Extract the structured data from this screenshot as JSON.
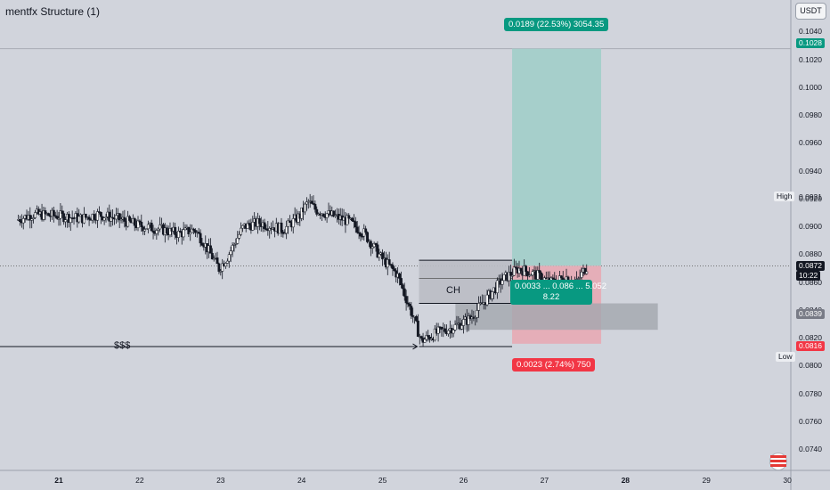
{
  "header": {
    "title": "mentfx Structure (1)"
  },
  "currency_button": "USDT",
  "chart_data": {
    "type": "candlestick",
    "title": "mentfx Structure (1)",
    "quote_currency": "USDT",
    "y_ticks": [
      0.074,
      0.076,
      0.078,
      0.08,
      0.082,
      0.084,
      0.086,
      0.088,
      0.09,
      0.092,
      0.094,
      0.096,
      0.098,
      0.1,
      0.102,
      0.104
    ],
    "ylim": [
      0.0725,
      0.1054
    ],
    "x_ticks": [
      "21",
      "22",
      "23",
      "24",
      "25",
      "26",
      "27",
      "28",
      "29",
      "30"
    ],
    "x_tick_bold": [
      "21",
      "28"
    ],
    "price_path": [
      [
        20.5,
        0.0905
      ],
      [
        20.7,
        0.0909
      ],
      [
        21.0,
        0.0908
      ],
      [
        21.3,
        0.0906
      ],
      [
        21.5,
        0.0909
      ],
      [
        21.8,
        0.0905
      ],
      [
        22.0,
        0.0901
      ],
      [
        22.3,
        0.0898
      ],
      [
        22.5,
        0.0895
      ],
      [
        22.7,
        0.0898
      ],
      [
        22.8,
        0.089
      ],
      [
        22.9,
        0.088
      ],
      [
        23.0,
        0.087
      ],
      [
        23.1,
        0.0878
      ],
      [
        23.3,
        0.09
      ],
      [
        23.5,
        0.0903
      ],
      [
        23.8,
        0.0898
      ],
      [
        24.0,
        0.0908
      ],
      [
        24.1,
        0.0918
      ],
      [
        24.2,
        0.0912
      ],
      [
        24.4,
        0.0908
      ],
      [
        24.6,
        0.0904
      ],
      [
        24.8,
        0.0895
      ],
      [
        25.0,
        0.0878
      ],
      [
        25.2,
        0.0866
      ],
      [
        25.4,
        0.0835
      ],
      [
        25.5,
        0.0818
      ],
      [
        25.7,
        0.0824
      ],
      [
        25.9,
        0.0828
      ],
      [
        26.1,
        0.0834
      ],
      [
        26.3,
        0.0848
      ],
      [
        26.5,
        0.0862
      ],
      [
        26.7,
        0.087
      ],
      [
        26.9,
        0.0866
      ],
      [
        27.1,
        0.086
      ],
      [
        27.3,
        0.0864
      ],
      [
        27.4,
        0.0858
      ],
      [
        27.5,
        0.0868
      ],
      [
        27.55,
        0.0872
      ]
    ],
    "high": 0.0921,
    "low": 0.0814,
    "current_price": 0.0872,
    "countdown": "10:22",
    "target_price": 0.1028,
    "stop_price": 0.0816,
    "level_0839": 0.0839,
    "target_box": "0.0189 (22.53%) 3054.35",
    "stop_box": "0.0023 (2.74%) 750",
    "middle_box_line1": "0.0033 ... 0.086 ... 5.052",
    "middle_box_line2": "8.22",
    "annotations": {
      "ch": "CH",
      "liquidity": "$$$"
    },
    "grid": false,
    "legend": "none"
  },
  "labels": {
    "high": "High",
    "low": "Low",
    "current": "0.0872",
    "countdown": "10:22",
    "target": "0.1028",
    "level": "0.0839",
    "stop": "0.0816",
    "low_value": "0.0814",
    "high_value": "0.0921"
  },
  "colors": {
    "background": "#d1d4dc",
    "candle_up": "#ffffff",
    "candle_down": "#131722",
    "target_zone": "#a6cfcb",
    "stop_zone": "#e7aab4",
    "target_tag": "#089981",
    "stop_tag": "#f23645",
    "dark_tag": "#131722",
    "gray_tag": "#787b86"
  }
}
